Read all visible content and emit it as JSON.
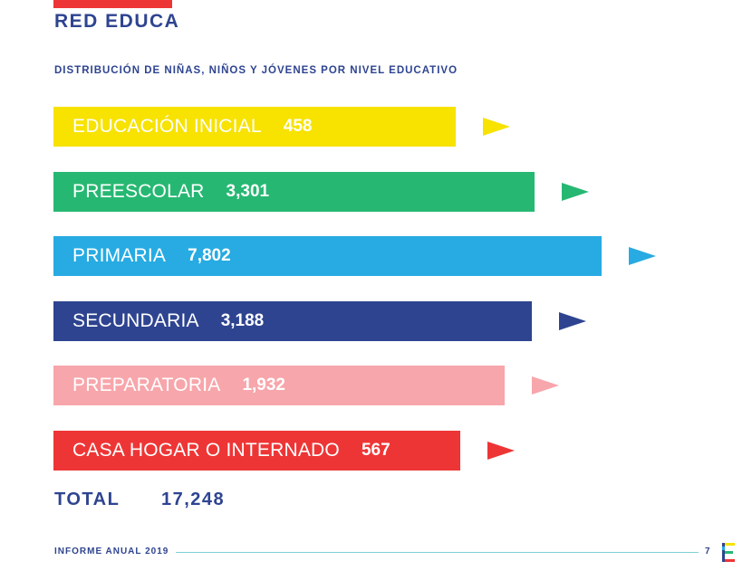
{
  "header": {
    "title": "RED EDUCA"
  },
  "chart_data": {
    "type": "bar",
    "title": "DISTRIBUCIÓN DE NIÑAS, NIÑOS Y JÓVENES POR NIVEL EDUCATIVO",
    "categories": [
      "EDUCACIÓN INICIAL",
      "PREESCOLAR",
      "PRIMARIA",
      "SECUNDARIA",
      "PREPARATORIA",
      "CASA HOGAR O INTERNADO"
    ],
    "values": [
      458,
      3301,
      7802,
      3188,
      1932,
      567
    ],
    "value_labels": [
      "458",
      "3,301",
      "7,802",
      "3,188",
      "1,932",
      "567"
    ],
    "colors": [
      "#f7e200",
      "#26b872",
      "#27abe2",
      "#2e4490",
      "#f7a6ab",
      "#ee3535"
    ]
  },
  "total": {
    "label": "TOTAL",
    "value": "17,248"
  },
  "footer": {
    "report": "INFORME ANUAL 2019",
    "page": "7"
  }
}
